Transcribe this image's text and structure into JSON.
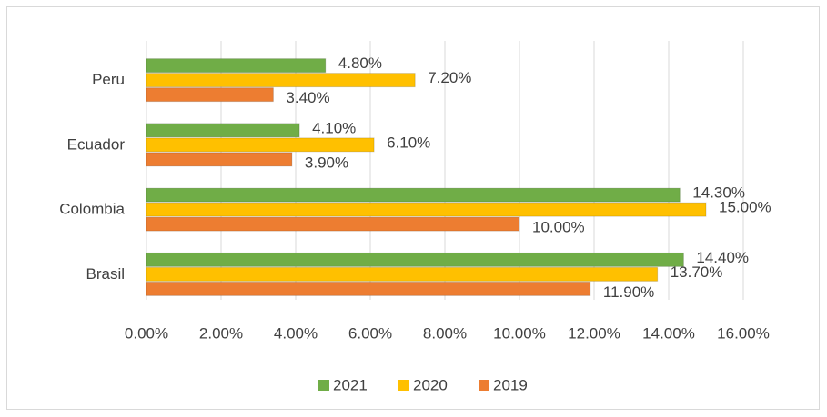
{
  "chart_data": {
    "type": "bar",
    "orientation": "horizontal",
    "categories": [
      "Peru",
      "Ecuador",
      "Colombia",
      "Brasil"
    ],
    "series": [
      {
        "name": "2021",
        "color": "#70ad47",
        "values": [
          4.8,
          4.1,
          14.3,
          14.4
        ],
        "value_labels": [
          "4.80%",
          "4.10%",
          "14.30%",
          "14.40%"
        ]
      },
      {
        "name": "2020",
        "color": "#ffc000",
        "values": [
          7.2,
          6.1,
          15.0,
          13.7
        ],
        "value_labels": [
          "7.20%",
          "6.10%",
          "15.00%",
          "13.70%"
        ]
      },
      {
        "name": "2019",
        "color": "#ed7d31",
        "values": [
          3.4,
          3.9,
          10.0,
          11.9
        ],
        "value_labels": [
          "3.40%",
          "3.90%",
          "10.00%",
          "11.90%"
        ]
      }
    ],
    "xlim": [
      0,
      16
    ],
    "xticks": [
      {
        "value": 0,
        "label": "0.00%"
      },
      {
        "value": 2,
        "label": "2.00%"
      },
      {
        "value": 4,
        "label": "4.00%"
      },
      {
        "value": 6,
        "label": "6.00%"
      },
      {
        "value": 8,
        "label": "8.00%"
      },
      {
        "value": 10,
        "label": "10.00%"
      },
      {
        "value": 12,
        "label": "12.00%"
      },
      {
        "value": 14,
        "label": "14.00%"
      },
      {
        "value": 16,
        "label": "16.00%"
      }
    ],
    "grid": true,
    "legend": "bottom"
  }
}
